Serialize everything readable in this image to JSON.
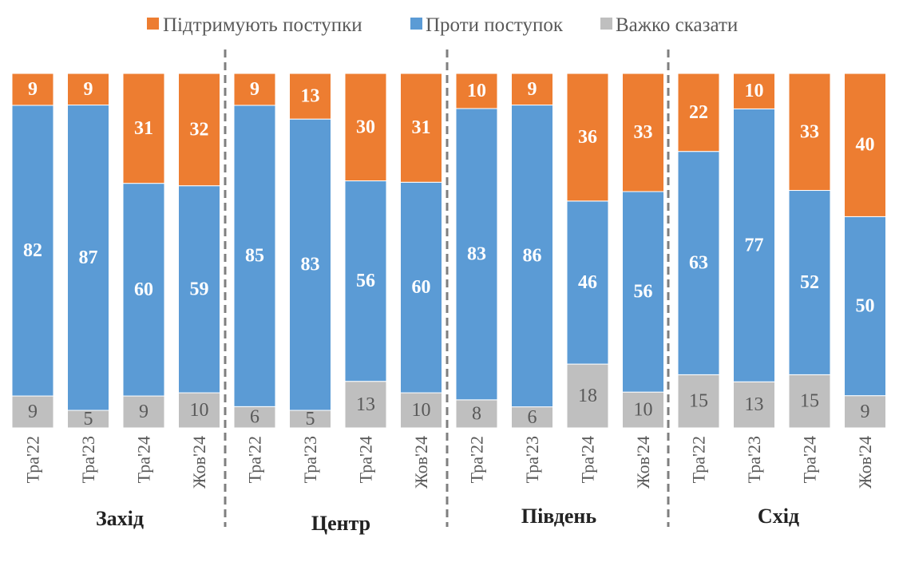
{
  "chart_data": {
    "type": "bar",
    "stacked": true,
    "normalized": true,
    "legend_position": "top",
    "grid": false,
    "colors": {
      "support": "#ED7D31",
      "against": "#5B9BD5",
      "unsure": "#BFBFBF"
    },
    "legend": [
      "Підтримують поступки",
      "Проти поступок",
      "Важко сказати"
    ],
    "groups": [
      "Захід",
      "Центр",
      "Південь",
      "Схід"
    ],
    "categories": [
      "Тра'22",
      "Тра'23",
      "Тра'24",
      "Жов'24",
      "Тра'22",
      "Тра'23",
      "Тра'24",
      "Жов'24",
      "Тра'22",
      "Тра'23",
      "Тра'24",
      "Жов'24",
      "Тра'22",
      "Тра'23",
      "Тра'24",
      "Жов'24"
    ],
    "series": [
      {
        "name": "Підтримують поступки",
        "values": [
          9,
          9,
          31,
          32,
          9,
          13,
          30,
          31,
          10,
          9,
          36,
          33,
          22,
          10,
          33,
          40
        ]
      },
      {
        "name": "Проти поступок",
        "values": [
          82,
          87,
          60,
          59,
          85,
          83,
          56,
          60,
          83,
          86,
          46,
          56,
          63,
          77,
          52,
          50
        ]
      },
      {
        "name": "Важко сказати",
        "values": [
          9,
          5,
          9,
          10,
          6,
          5,
          13,
          10,
          8,
          6,
          18,
          10,
          15,
          13,
          15,
          9
        ]
      }
    ]
  }
}
